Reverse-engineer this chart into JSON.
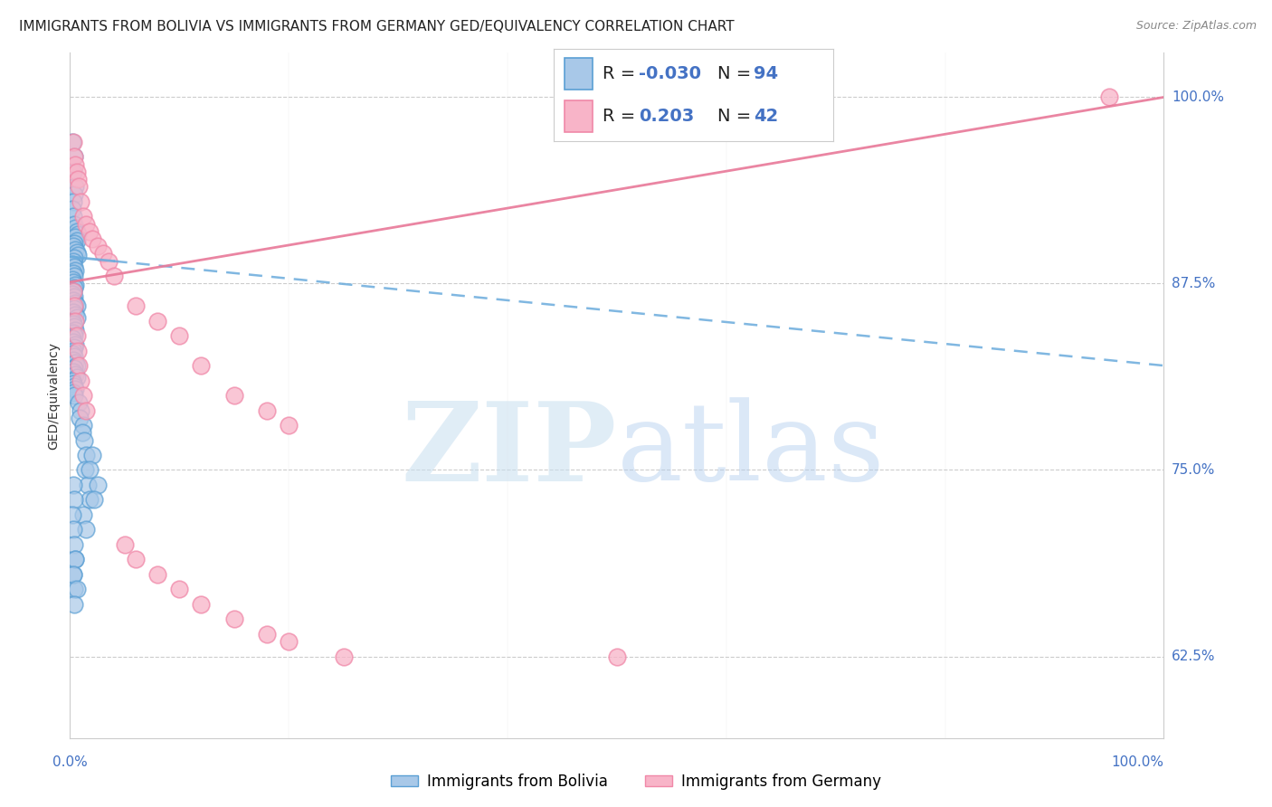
{
  "title": "IMMIGRANTS FROM BOLIVIA VS IMMIGRANTS FROM GERMANY GED/EQUIVALENCY CORRELATION CHART",
  "source": "Source: ZipAtlas.com",
  "ylabel": "GED/Equivalency",
  "ytick_labels": [
    "62.5%",
    "75.0%",
    "87.5%",
    "100.0%"
  ],
  "ytick_values": [
    0.625,
    0.75,
    0.875,
    1.0
  ],
  "legend_label_bolivia": "Immigrants from Bolivia",
  "legend_label_germany": "Immigrants from Germany",
  "R_bolivia": "-0.030",
  "N_bolivia": "94",
  "R_germany": "0.203",
  "N_germany": "42",
  "color_bolivia_fill": "#a8c8e8",
  "color_bolivia_edge": "#5a9fd4",
  "color_germany_fill": "#f8b4c8",
  "color_germany_edge": "#f088a8",
  "color_bolivia_line": "#6aabdc",
  "color_germany_line": "#e87898",
  "watermark_zip": "ZIP",
  "watermark_atlas": "atlas",
  "background_color": "#ffffff",
  "title_fontsize": 11,
  "axis_label_fontsize": 10,
  "tick_fontsize": 11,
  "legend_fontsize": 14,
  "source_fontsize": 9,
  "bolivia_x": [
    0.002,
    0.004,
    0.003,
    0.005,
    0.004,
    0.003,
    0.002,
    0.003,
    0.004,
    0.005,
    0.006,
    0.007,
    0.005,
    0.006,
    0.004,
    0.003,
    0.005,
    0.006,
    0.007,
    0.004,
    0.003,
    0.002,
    0.004,
    0.005,
    0.003,
    0.004,
    0.002,
    0.003,
    0.005,
    0.004,
    0.003,
    0.002,
    0.004,
    0.003,
    0.005,
    0.006,
    0.004,
    0.003,
    0.005,
    0.006,
    0.002,
    0.003,
    0.004,
    0.005,
    0.003,
    0.004,
    0.002,
    0.003,
    0.005,
    0.004,
    0.003,
    0.002,
    0.004,
    0.003,
    0.005,
    0.006,
    0.004,
    0.003,
    0.005,
    0.006,
    0.002,
    0.003,
    0.004,
    0.005,
    0.003,
    0.004,
    0.008,
    0.01,
    0.009,
    0.012,
    0.011,
    0.013,
    0.015,
    0.014,
    0.016,
    0.018,
    0.012,
    0.015,
    0.02,
    0.018,
    0.025,
    0.022,
    0.003,
    0.004,
    0.002,
    0.003,
    0.004,
    0.005,
    0.003,
    0.004,
    0.005,
    0.003,
    0.006,
    0.004
  ],
  "bolivia_y": [
    0.97,
    0.96,
    0.95,
    0.94,
    0.935,
    0.93,
    0.925,
    0.92,
    0.915,
    0.912,
    0.91,
    0.908,
    0.906,
    0.904,
    0.902,
    0.9,
    0.898,
    0.896,
    0.894,
    0.892,
    0.89,
    0.888,
    0.886,
    0.884,
    0.882,
    0.88,
    0.878,
    0.876,
    0.874,
    0.872,
    0.87,
    0.868,
    0.866,
    0.864,
    0.862,
    0.86,
    0.858,
    0.856,
    0.854,
    0.852,
    0.85,
    0.848,
    0.846,
    0.844,
    0.842,
    0.84,
    0.838,
    0.836,
    0.834,
    0.832,
    0.83,
    0.828,
    0.826,
    0.824,
    0.822,
    0.82,
    0.818,
    0.816,
    0.814,
    0.812,
    0.81,
    0.808,
    0.806,
    0.804,
    0.802,
    0.8,
    0.795,
    0.79,
    0.785,
    0.78,
    0.775,
    0.77,
    0.76,
    0.75,
    0.74,
    0.73,
    0.72,
    0.71,
    0.76,
    0.75,
    0.74,
    0.73,
    0.74,
    0.73,
    0.72,
    0.71,
    0.7,
    0.69,
    0.68,
    0.67,
    0.69,
    0.68,
    0.67,
    0.66
  ],
  "germany_x": [
    0.003,
    0.004,
    0.005,
    0.006,
    0.007,
    0.008,
    0.01,
    0.012,
    0.015,
    0.018,
    0.02,
    0.025,
    0.03,
    0.035,
    0.04,
    0.003,
    0.004,
    0.005,
    0.006,
    0.007,
    0.008,
    0.01,
    0.012,
    0.015,
    0.06,
    0.08,
    0.1,
    0.12,
    0.15,
    0.18,
    0.2,
    0.05,
    0.06,
    0.08,
    0.1,
    0.12,
    0.15,
    0.18,
    0.2,
    0.25,
    0.5,
    0.95
  ],
  "germany_y": [
    0.97,
    0.96,
    0.955,
    0.95,
    0.945,
    0.94,
    0.93,
    0.92,
    0.915,
    0.91,
    0.905,
    0.9,
    0.895,
    0.89,
    0.88,
    0.87,
    0.86,
    0.85,
    0.84,
    0.83,
    0.82,
    0.81,
    0.8,
    0.79,
    0.86,
    0.85,
    0.84,
    0.82,
    0.8,
    0.79,
    0.78,
    0.7,
    0.69,
    0.68,
    0.67,
    0.66,
    0.65,
    0.64,
    0.635,
    0.625,
    0.625,
    1.0
  ],
  "bolivia_trend": [
    0.893,
    0.82
  ],
  "germany_trend": [
    0.876,
    1.0
  ],
  "xlim": [
    0.0,
    1.0
  ],
  "ylim": [
    0.57,
    1.03
  ]
}
